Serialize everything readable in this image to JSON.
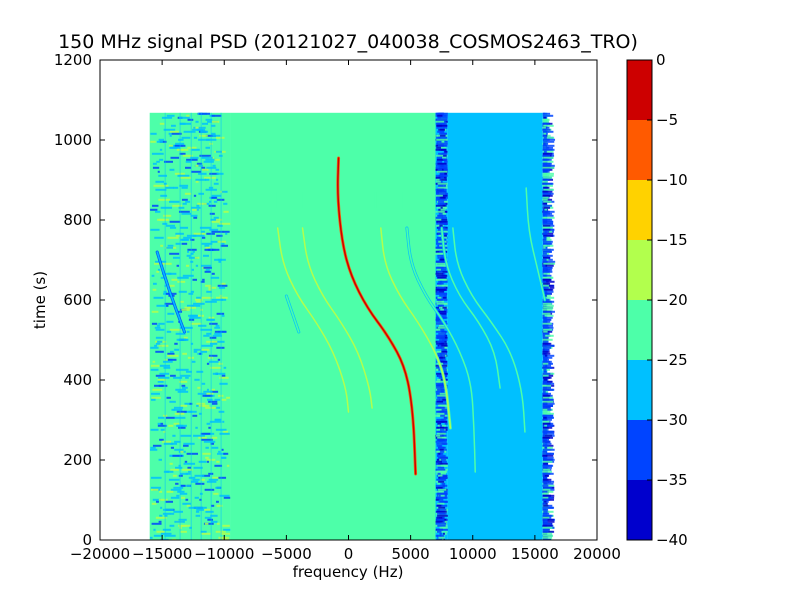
{
  "chart_data": {
    "type": "heatmap",
    "title": "150 MHz signal PSD (20121027_040038_COSMOS2463_TRO)",
    "xlabel": "frequency (Hz)",
    "ylabel": "time (s)",
    "xlim": [
      -20000,
      20000
    ],
    "ylim": [
      0,
      1200
    ],
    "xticks": [
      -20000,
      -15000,
      -10000,
      -5000,
      0,
      5000,
      10000,
      15000,
      20000
    ],
    "xtick_labels": [
      "−20000",
      "−15000",
      "−10000",
      "−5000",
      "0",
      "5000",
      "10000",
      "15000",
      "20000"
    ],
    "yticks": [
      0,
      200,
      400,
      600,
      800,
      1000,
      1200
    ],
    "ytick_labels": [
      "0",
      "200",
      "400",
      "600",
      "800",
      "1000",
      "1200"
    ],
    "data_extent": {
      "freq": [
        -16000,
        16000
      ],
      "time": [
        0,
        1068
      ]
    },
    "background_regions": [
      {
        "freq": [
          -16000,
          -9500
        ],
        "level": -23,
        "noisy": true
      },
      {
        "freq": [
          -9500,
          7000
        ],
        "level": -22,
        "noisy": false
      },
      {
        "freq": [
          7000,
          8000
        ],
        "level": -26,
        "noisy": true
      },
      {
        "freq": [
          8000,
          15600
        ],
        "level": -28,
        "noisy": false
      },
      {
        "freq": [
          15600,
          16000
        ],
        "level": -27,
        "noisy": true
      }
    ],
    "traces": [
      {
        "points": [
          [
            -800,
            955
          ],
          [
            -900,
            860
          ],
          [
            -500,
            740
          ],
          [
            200,
            660
          ],
          [
            1500,
            580
          ],
          [
            3200,
            510
          ],
          [
            4600,
            430
          ],
          [
            5200,
            320
          ],
          [
            5400,
            165
          ]
        ],
        "level": -2
      },
      {
        "points": [
          [
            -5700,
            780
          ],
          [
            -5300,
            690
          ],
          [
            -4100,
            610
          ],
          [
            -2600,
            545
          ],
          [
            -1200,
            470
          ],
          [
            -200,
            380
          ],
          [
            0,
            320
          ]
        ],
        "level": -16
      },
      {
        "points": [
          [
            -3700,
            780
          ],
          [
            -3300,
            690
          ],
          [
            -2100,
            610
          ],
          [
            -600,
            545
          ],
          [
            800,
            470
          ],
          [
            1700,
            380
          ],
          [
            1900,
            330
          ]
        ],
        "level": -15
      },
      {
        "points": [
          [
            2600,
            780
          ],
          [
            2900,
            690
          ],
          [
            4100,
            610
          ],
          [
            5600,
            545
          ],
          [
            7000,
            470
          ],
          [
            7800,
            400
          ],
          [
            8200,
            280
          ]
        ],
        "level": -16
      },
      {
        "points": [
          [
            4700,
            780
          ],
          [
            5000,
            690
          ],
          [
            6200,
            610
          ],
          [
            7700,
            545
          ],
          [
            9000,
            470
          ],
          [
            9900,
            390
          ],
          [
            10100,
            280
          ],
          [
            10200,
            170
          ]
        ],
        "level": -20
      },
      {
        "points": [
          [
            7500,
            780
          ],
          [
            7800,
            690
          ],
          [
            8900,
            610
          ],
          [
            10500,
            545
          ],
          [
            11800,
            470
          ],
          [
            12200,
            380
          ]
        ],
        "level": -23
      },
      {
        "points": [
          [
            8400,
            780
          ],
          [
            8700,
            690
          ],
          [
            9900,
            610
          ],
          [
            11500,
            545
          ],
          [
            13100,
            470
          ],
          [
            14000,
            370
          ],
          [
            14200,
            270
          ]
        ],
        "level": -23
      },
      {
        "points": [
          [
            14300,
            880
          ],
          [
            14500,
            770
          ],
          [
            15200,
            680
          ],
          [
            15800,
            600
          ]
        ],
        "level": -22
      },
      {
        "points": [
          [
            -15400,
            720
          ],
          [
            -14400,
            620
          ],
          [
            -13200,
            520
          ]
        ],
        "level": -25
      },
      {
        "points": [
          [
            -5000,
            610
          ],
          [
            -4000,
            520
          ]
        ],
        "level": -23
      }
    ],
    "markers": [
      {
        "freq": -5900,
        "time": [
          830,
          870
        ],
        "level": -20
      },
      {
        "freq": -3800,
        "time": [
          830,
          870
        ],
        "level": -20
      },
      {
        "freq": 2200,
        "time": [
          830,
          870
        ],
        "level": -20
      },
      {
        "freq": 4300,
        "time": [
          830,
          870
        ],
        "level": -20
      }
    ],
    "colorbar": {
      "range": [
        -40,
        0
      ],
      "ticks": [
        0,
        -5,
        -10,
        -15,
        -20,
        -25,
        -30,
        -35,
        -40
      ],
      "tick_labels": [
        "0",
        "−5",
        "−10",
        "−15",
        "−20",
        "−25",
        "−30",
        "−35",
        "−40"
      ],
      "levels": [
        {
          "from": -40,
          "to": -35,
          "color": "#0000cd"
        },
        {
          "from": -35,
          "to": -30,
          "color": "#0044ff"
        },
        {
          "from": -30,
          "to": -25,
          "color": "#00c0ff"
        },
        {
          "from": -25,
          "to": -20,
          "color": "#4dffa9"
        },
        {
          "from": -20,
          "to": -15,
          "color": "#b2ff4d"
        },
        {
          "from": -15,
          "to": -10,
          "color": "#ffd200"
        },
        {
          "from": -10,
          "to": -5,
          "color": "#ff5a00"
        },
        {
          "from": -5,
          "to": 0,
          "color": "#cd0000"
        }
      ]
    },
    "grid": false,
    "legend": "none"
  }
}
